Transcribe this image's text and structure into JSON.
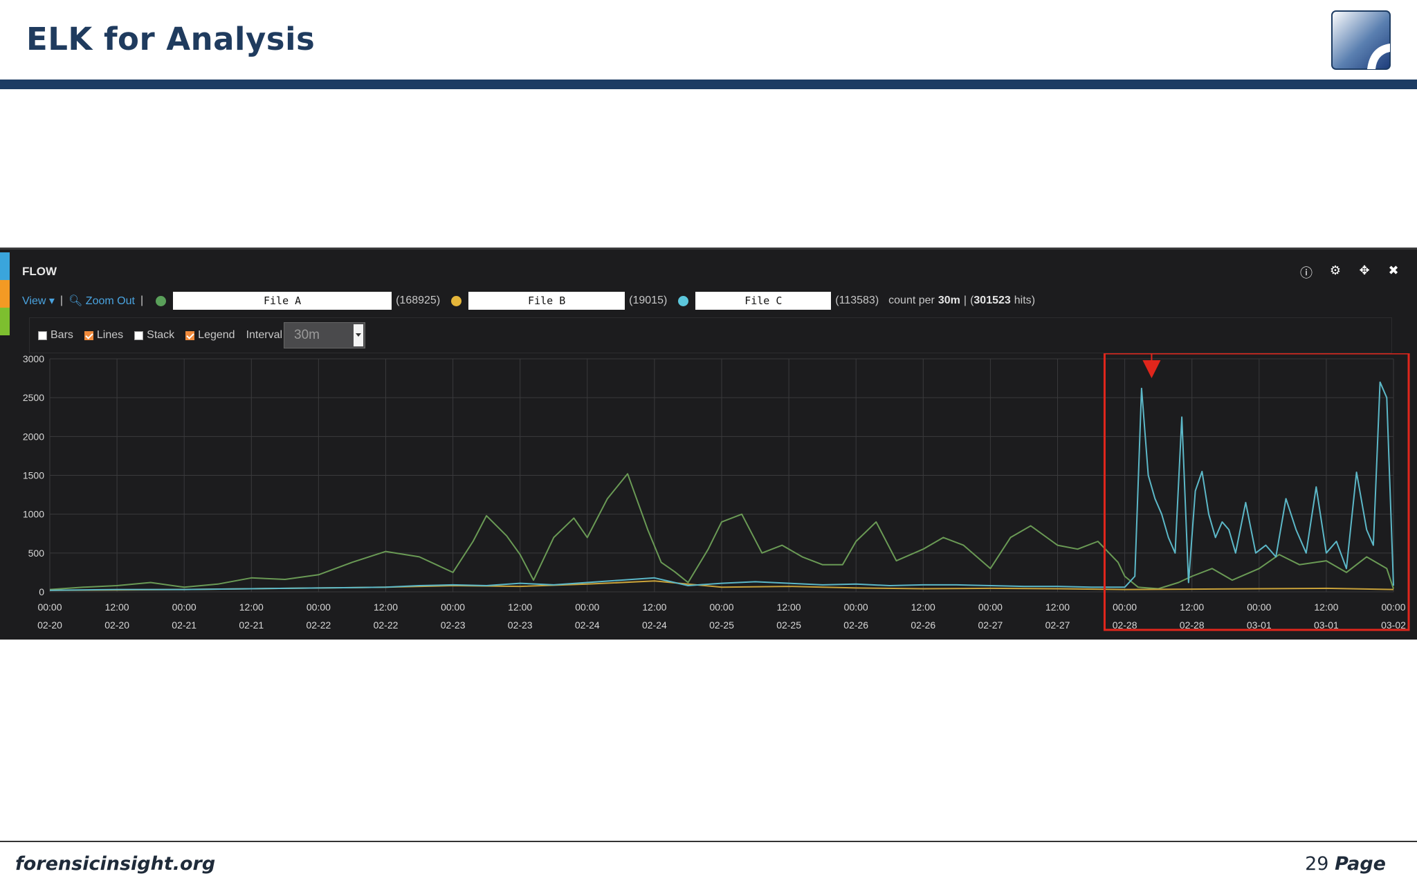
{
  "slide": {
    "title": "ELK for Analysis",
    "footer_site": "forensicinsight.org",
    "page_number": "29",
    "page_word": "Page"
  },
  "panel": {
    "title": "FLOW",
    "icons": [
      "info-icon",
      "gear-icon",
      "move-icon",
      "close-icon"
    ],
    "view_label": "View",
    "zoom_out_label": "Zoom Out",
    "queries": [
      {
        "label": "File A",
        "count": "(168925)",
        "color": "#5aa05a"
      },
      {
        "label": "File B",
        "count": "(19015)",
        "color": "#e5b63a"
      },
      {
        "label": "File C",
        "count": "(113583)",
        "color": "#5cc7dc"
      }
    ],
    "summary_prefix": "count per",
    "summary_interval": "30m",
    "summary_hits_count": "301523",
    "summary_hits_word": "hits",
    "options": [
      {
        "label": "Bars",
        "checked": false
      },
      {
        "label": "Lines",
        "checked": true
      },
      {
        "label": "Stack",
        "checked": false
      },
      {
        "label": "Legend",
        "checked": true
      }
    ],
    "interval_label": "Interval",
    "interval_value": "30m"
  },
  "chart_data": {
    "type": "line",
    "ylim": [
      0,
      3000
    ],
    "yticks": [
      0,
      500,
      1000,
      1500,
      2000,
      2500,
      3000
    ],
    "x_ticks": [
      {
        "time": "00:00",
        "date": "02-20"
      },
      {
        "time": "12:00",
        "date": "02-20"
      },
      {
        "time": "00:00",
        "date": "02-21"
      },
      {
        "time": "12:00",
        "date": "02-21"
      },
      {
        "time": "00:00",
        "date": "02-22"
      },
      {
        "time": "12:00",
        "date": "02-22"
      },
      {
        "time": "00:00",
        "date": "02-23"
      },
      {
        "time": "12:00",
        "date": "02-23"
      },
      {
        "time": "00:00",
        "date": "02-24"
      },
      {
        "time": "12:00",
        "date": "02-24"
      },
      {
        "time": "00:00",
        "date": "02-25"
      },
      {
        "time": "12:00",
        "date": "02-25"
      },
      {
        "time": "00:00",
        "date": "02-26"
      },
      {
        "time": "12:00",
        "date": "02-26"
      },
      {
        "time": "00:00",
        "date": "02-27"
      },
      {
        "time": "12:00",
        "date": "02-27"
      },
      {
        "time": "00:00",
        "date": "02-28"
      },
      {
        "time": "12:00",
        "date": "02-28"
      },
      {
        "time": "00:00",
        "date": "03-01"
      },
      {
        "time": "12:00",
        "date": "03-01"
      },
      {
        "time": "00:00",
        "date": "03-02"
      }
    ],
    "series": [
      {
        "color": "#6a9a55",
        "x": [
          0,
          0.5,
          1,
          1.5,
          2,
          2.5,
          3,
          3.5,
          4,
          4.5,
          5,
          5.5,
          6,
          6.3,
          6.5,
          6.8,
          7,
          7.2,
          7.5,
          7.8,
          8,
          8.3,
          8.6,
          8.9,
          9.1,
          9.3,
          9.5,
          9.8,
          10,
          10.3,
          10.6,
          10.9,
          11.2,
          11.5,
          11.8,
          12,
          12.3,
          12.6,
          13,
          13.3,
          13.6,
          14,
          14.3,
          14.6,
          15,
          15.3,
          15.6,
          15.9,
          16,
          16.2,
          16.5,
          16.8,
          17,
          17.3,
          17.6,
          18,
          18.3,
          18.6,
          19,
          19.3,
          19.6,
          19.9,
          20
        ],
        "values": [
          30,
          60,
          80,
          120,
          60,
          100,
          180,
          160,
          220,
          380,
          520,
          450,
          250,
          650,
          980,
          720,
          480,
          150,
          700,
          950,
          700,
          1200,
          1520,
          800,
          380,
          260,
          120,
          550,
          900,
          1000,
          500,
          600,
          450,
          350,
          350,
          650,
          900,
          400,
          550,
          700,
          600,
          300,
          700,
          850,
          600,
          550,
          650,
          380,
          200,
          60,
          40,
          120,
          200,
          300,
          150,
          300,
          480,
          350,
          400,
          250,
          450,
          300,
          40
        ]
      },
      {
        "color": "#c9a23a",
        "x": [
          0,
          1,
          2,
          3,
          4,
          5,
          6,
          7,
          8,
          9,
          10,
          11,
          12,
          13,
          14,
          15,
          16,
          17,
          18,
          19,
          20
        ],
        "values": [
          20,
          25,
          30,
          40,
          50,
          60,
          80,
          70,
          100,
          140,
          60,
          70,
          50,
          40,
          45,
          40,
          30,
          35,
          40,
          45,
          30
        ]
      },
      {
        "color": "#5cb8c8",
        "x": [
          0,
          1,
          2,
          3,
          4,
          5,
          5.5,
          6,
          6.5,
          7,
          7.5,
          8,
          8.5,
          9,
          9.5,
          10,
          10.5,
          11,
          11.5,
          12,
          12.5,
          13,
          13.5,
          14,
          14.5,
          15,
          15.5,
          16,
          16.15,
          16.25,
          16.35,
          16.45,
          16.55,
          16.65,
          16.75,
          16.85,
          16.95,
          17.05,
          17.15,
          17.25,
          17.35,
          17.45,
          17.55,
          17.65,
          17.8,
          17.95,
          18.1,
          18.25,
          18.4,
          18.55,
          18.7,
          18.85,
          19.0,
          19.15,
          19.3,
          19.45,
          19.6,
          19.7,
          19.8,
          19.9,
          20
        ],
        "values": [
          20,
          30,
          30,
          40,
          50,
          60,
          80,
          90,
          80,
          110,
          90,
          120,
          150,
          180,
          80,
          110,
          130,
          110,
          90,
          100,
          80,
          90,
          90,
          80,
          70,
          70,
          60,
          60,
          200,
          2620,
          1500,
          1200,
          1000,
          700,
          500,
          2250,
          120,
          1300,
          1550,
          1000,
          700,
          900,
          800,
          500,
          1150,
          500,
          600,
          450,
          1200,
          800,
          500,
          1350,
          500,
          650,
          300,
          1540,
          800,
          600,
          2700,
          2500,
          80
        ]
      }
    ]
  }
}
